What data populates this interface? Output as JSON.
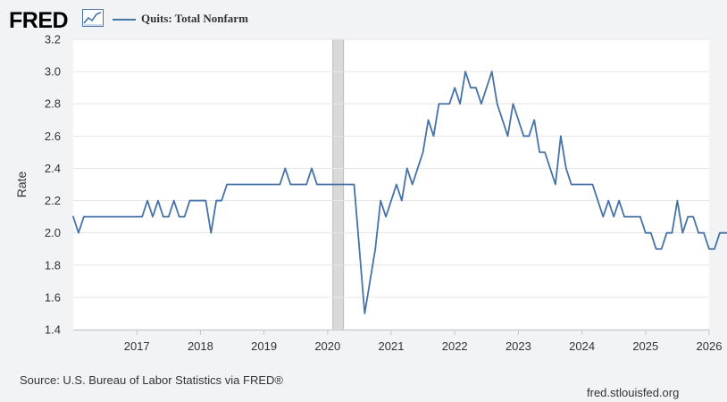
{
  "header": {
    "logo_text": "FRED",
    "logo_icon": "line-chart-icon",
    "legend_label": "Quits: Total Nonfarm",
    "series_color": "#4572a7"
  },
  "footer": {
    "source": "Source: U.S. Bureau of Labor Statistics via FRED®",
    "site": "fred.stlouisfed.org"
  },
  "chart_data": {
    "type": "line",
    "title": "",
    "xlabel": "",
    "ylabel": "Rate",
    "ylim": [
      1.4,
      3.2
    ],
    "yticks": [
      "1.4",
      "1.6",
      "1.8",
      "2.0",
      "2.2",
      "2.4",
      "2.6",
      "2.8",
      "3.0",
      "3.2"
    ],
    "xlim": [
      "2016-01",
      "2026-01"
    ],
    "xticks": [
      "2017",
      "2018",
      "2019",
      "2020",
      "2021",
      "2022",
      "2023",
      "2024",
      "2025",
      "2026"
    ],
    "grid": "horizontal",
    "recession_shading": [
      "2020-02",
      "2020-04"
    ],
    "series": [
      {
        "name": "Quits: Total Nonfarm",
        "color": "#4572a7",
        "start": "2016-01",
        "frequency": "monthly",
        "values": [
          2.1,
          2.0,
          2.1,
          2.1,
          2.1,
          2.1,
          2.1,
          2.1,
          2.1,
          2.1,
          2.1,
          2.1,
          2.1,
          2.1,
          2.2,
          2.1,
          2.2,
          2.1,
          2.1,
          2.2,
          2.1,
          2.1,
          2.2,
          2.2,
          2.2,
          2.2,
          2.0,
          2.2,
          2.2,
          2.3,
          2.3,
          2.3,
          2.3,
          2.3,
          2.3,
          2.3,
          2.3,
          2.3,
          2.3,
          2.3,
          2.4,
          2.3,
          2.3,
          2.3,
          2.3,
          2.4,
          2.3,
          2.3,
          2.3,
          2.3,
          2.3,
          2.3,
          2.3,
          2.3,
          1.9,
          1.5,
          1.7,
          1.9,
          2.2,
          2.1,
          2.2,
          2.3,
          2.2,
          2.4,
          2.3,
          2.4,
          2.5,
          2.7,
          2.6,
          2.8,
          2.8,
          2.8,
          2.9,
          2.8,
          3.0,
          2.9,
          2.9,
          2.8,
          2.9,
          3.0,
          2.8,
          2.7,
          2.6,
          2.8,
          2.7,
          2.6,
          2.6,
          2.7,
          2.5,
          2.5,
          2.4,
          2.3,
          2.6,
          2.4,
          2.3,
          2.3,
          2.3,
          2.3,
          2.3,
          2.2,
          2.1,
          2.2,
          2.1,
          2.2,
          2.1,
          2.1,
          2.1,
          2.1,
          2.0,
          2.0,
          1.9,
          1.9,
          2.0,
          2.0,
          2.2,
          2.0,
          2.1,
          2.1,
          2.0,
          2.0,
          1.9,
          1.9,
          2.0,
          2.0,
          2.0,
          1.9
        ]
      }
    ]
  }
}
